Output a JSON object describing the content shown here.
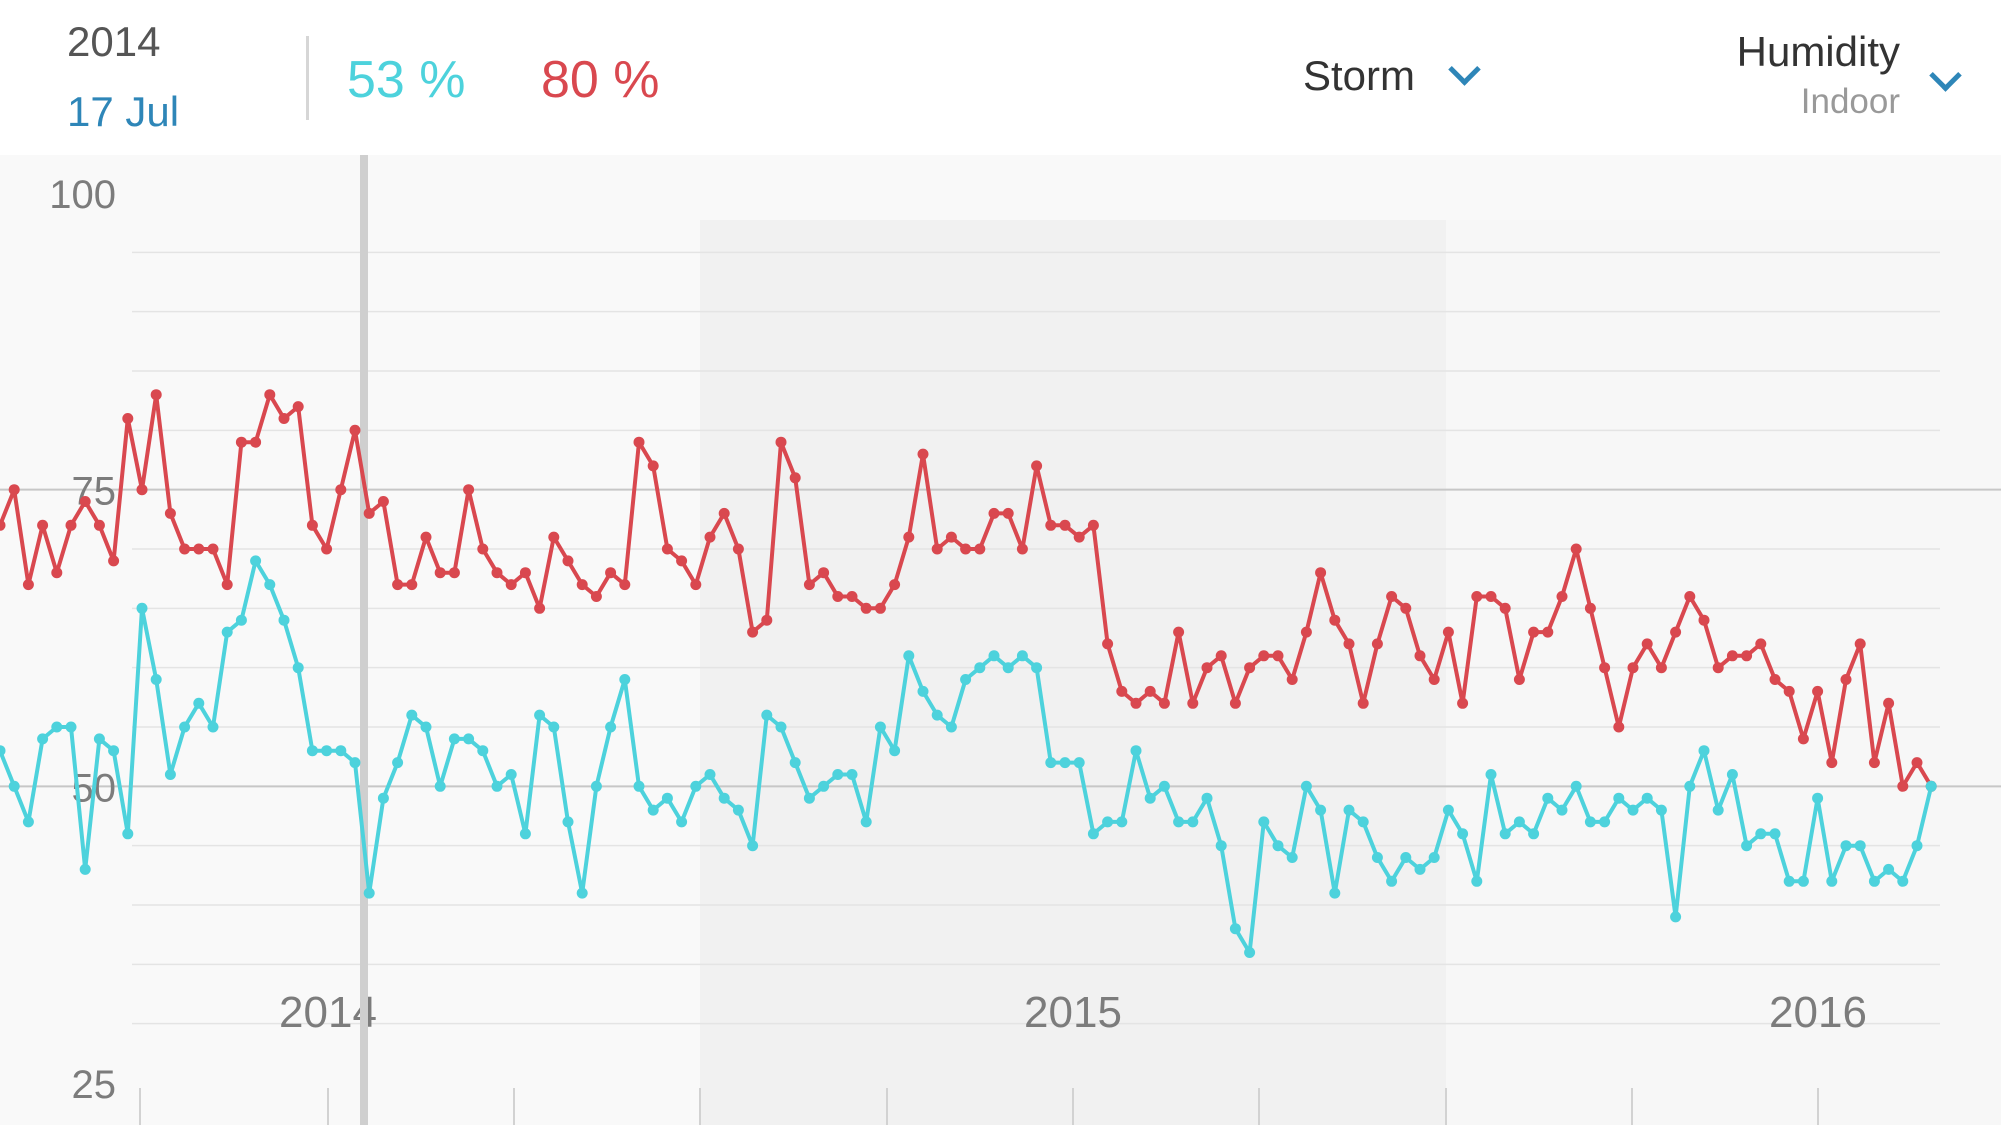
{
  "header": {
    "year": "2014",
    "day": "17 Jul",
    "value_a": "53 %",
    "value_b": "80 %",
    "color_a": "#4dd2dc",
    "color_b": "#d9484f",
    "storm_label": "Storm",
    "metric_label": "Humidity",
    "metric_sub": "Indoor"
  },
  "chart_data": {
    "type": "line",
    "ylim": [
      25,
      100
    ],
    "yticks": [
      "100",
      "75",
      "50",
      "25"
    ],
    "year_ticks": [
      "2014",
      "2015",
      "2016"
    ],
    "series": [
      {
        "color": "#d9484f",
        "values": [
          72,
          75,
          67,
          72,
          68,
          72,
          74,
          72,
          69,
          81,
          75,
          83,
          73,
          70,
          70,
          70,
          67,
          79,
          79,
          83,
          81,
          82,
          72,
          70,
          75,
          80,
          73,
          74,
          67,
          67,
          71,
          68,
          68,
          75,
          70,
          68,
          67,
          68,
          65,
          71,
          69,
          67,
          66,
          68,
          67,
          79,
          77,
          70,
          69,
          67,
          71,
          73,
          70,
          63,
          64,
          79,
          76,
          67,
          68,
          66,
          66,
          65,
          65,
          67,
          71,
          78,
          70,
          71,
          70,
          70,
          73,
          73,
          70,
          77,
          72,
          72,
          71,
          72,
          62,
          58,
          57,
          58,
          57,
          63,
          57,
          60,
          61,
          57,
          60,
          61,
          61,
          59,
          63,
          68,
          64,
          62,
          57,
          62,
          66,
          65,
          61,
          59,
          63,
          57,
          66,
          66,
          65,
          59,
          63,
          63,
          66,
          70,
          65,
          60,
          55,
          60,
          62,
          60,
          63,
          66,
          64,
          60,
          61,
          61,
          62,
          59,
          58,
          54,
          58,
          52,
          59,
          62,
          52,
          57,
          50,
          52,
          50
        ],
        "show_points": true
      },
      {
        "color": "#4dd2dc",
        "values": [
          53,
          50,
          47,
          54,
          55,
          55,
          43,
          54,
          53,
          46,
          65,
          59,
          51,
          55,
          57,
          55,
          63,
          64,
          69,
          67,
          64,
          60,
          53,
          53,
          53,
          52,
          41,
          49,
          52,
          56,
          55,
          50,
          54,
          54,
          53,
          50,
          51,
          46,
          56,
          55,
          47,
          41,
          50,
          55,
          59,
          50,
          48,
          49,
          47,
          50,
          51,
          49,
          48,
          45,
          56,
          55,
          52,
          49,
          50,
          51,
          51,
          47,
          55,
          53,
          61,
          58,
          56,
          55,
          59,
          60,
          61,
          60,
          61,
          60,
          52,
          52,
          52,
          46,
          47,
          47,
          53,
          49,
          50,
          47,
          47,
          49,
          45,
          38,
          36,
          47,
          45,
          44,
          50,
          48,
          41,
          48,
          47,
          44,
          42,
          44,
          43,
          44,
          48,
          46,
          42,
          51,
          46,
          47,
          46,
          49,
          48,
          50,
          47,
          47,
          49,
          48,
          49,
          48,
          39,
          50,
          53,
          48,
          51,
          45,
          46,
          46,
          42,
          42,
          49,
          42,
          45,
          45,
          42,
          43,
          42,
          45,
          50
        ],
        "show_points": true
      }
    ],
    "grid": true,
    "cursor_date": "2014 17 Jul"
  }
}
